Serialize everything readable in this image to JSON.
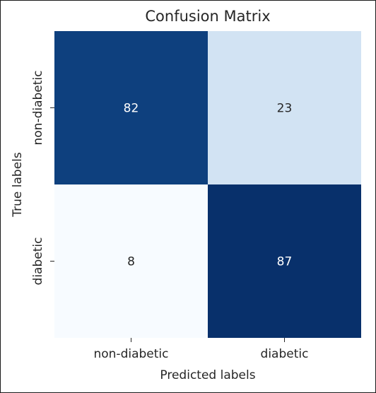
{
  "chart_data": {
    "type": "heatmap",
    "title": "Confusion Matrix",
    "xlabel": "Predicted labels",
    "ylabel": "True labels",
    "x_categories": [
      "non-diabetic",
      "diabetic"
    ],
    "y_categories": [
      "non-diabetic",
      "diabetic"
    ],
    "values": [
      [
        82,
        23
      ],
      [
        8,
        87
      ]
    ],
    "colormap": "Blues",
    "color_range": [
      8,
      87
    ],
    "colorbar": false,
    "annotations": true
  }
}
